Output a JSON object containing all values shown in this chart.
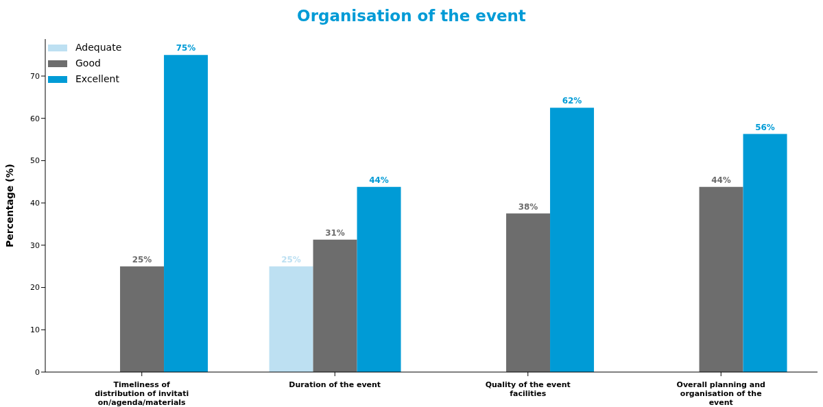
{
  "chart_data": {
    "type": "bar",
    "title": "Organisation of the event",
    "ylabel": "Percentage (%)",
    "categories": [
      "Timeliness of distribution of invitation/agenda/materials",
      "Duration of the event",
      "Quality of the event facilities",
      "Overall planning and organisation of the event"
    ],
    "series": [
      {
        "name": "Adequate",
        "color": "#bde0f2",
        "values": [
          null,
          25,
          null,
          null
        ],
        "value_labels": [
          null,
          "25%",
          null,
          null
        ]
      },
      {
        "name": "Good",
        "color": "#6d6d6d",
        "values": [
          25,
          31.3,
          37.5,
          43.8
        ],
        "value_labels": [
          "25%",
          "31%",
          "38%",
          "44%"
        ]
      },
      {
        "name": "Excellent",
        "color": "#009bd6",
        "values": [
          75,
          43.8,
          62.5,
          56.3
        ],
        "value_labels": [
          "75%",
          "44%",
          "62%",
          "56%"
        ]
      }
    ],
    "ylim": [
      0,
      78.75
    ],
    "yticks": [
      0,
      10,
      20,
      30,
      40,
      50,
      60,
      70
    ],
    "grid": false,
    "legend": "top left"
  }
}
